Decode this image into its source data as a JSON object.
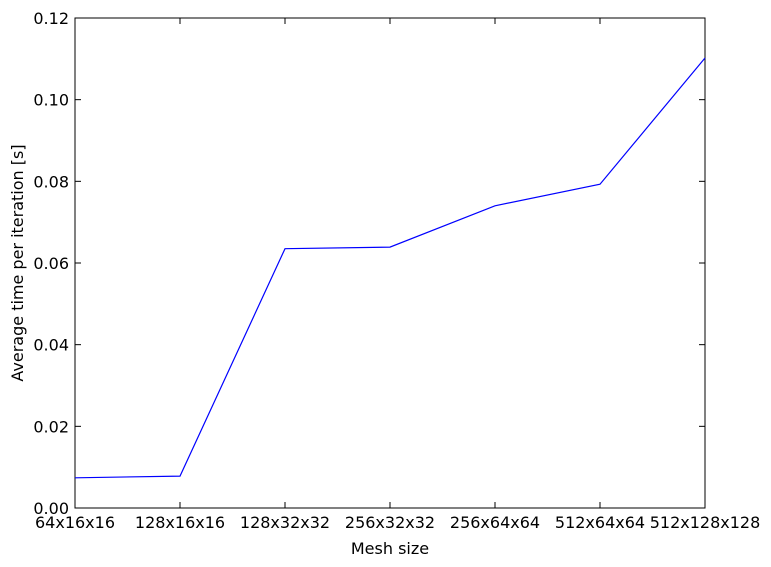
{
  "chart_data": {
    "type": "line",
    "title": "",
    "xlabel": "Mesh size",
    "ylabel": "Average time per iteration [s]",
    "categories": [
      "64x16x16",
      "128x16x16",
      "128x32x32",
      "256x32x32",
      "256x64x64",
      "512x64x64",
      "512x128x128"
    ],
    "series": [
      {
        "values": [
          0.0074,
          0.0078,
          0.0635,
          0.0639,
          0.074,
          0.0793,
          0.1102
        ],
        "color": "#0000ff"
      }
    ],
    "ylim": [
      0.0,
      0.12
    ],
    "yticks": [
      "0.00",
      "0.02",
      "0.04",
      "0.06",
      "0.08",
      "0.10",
      "0.12"
    ],
    "grid": false,
    "legend": "none"
  }
}
